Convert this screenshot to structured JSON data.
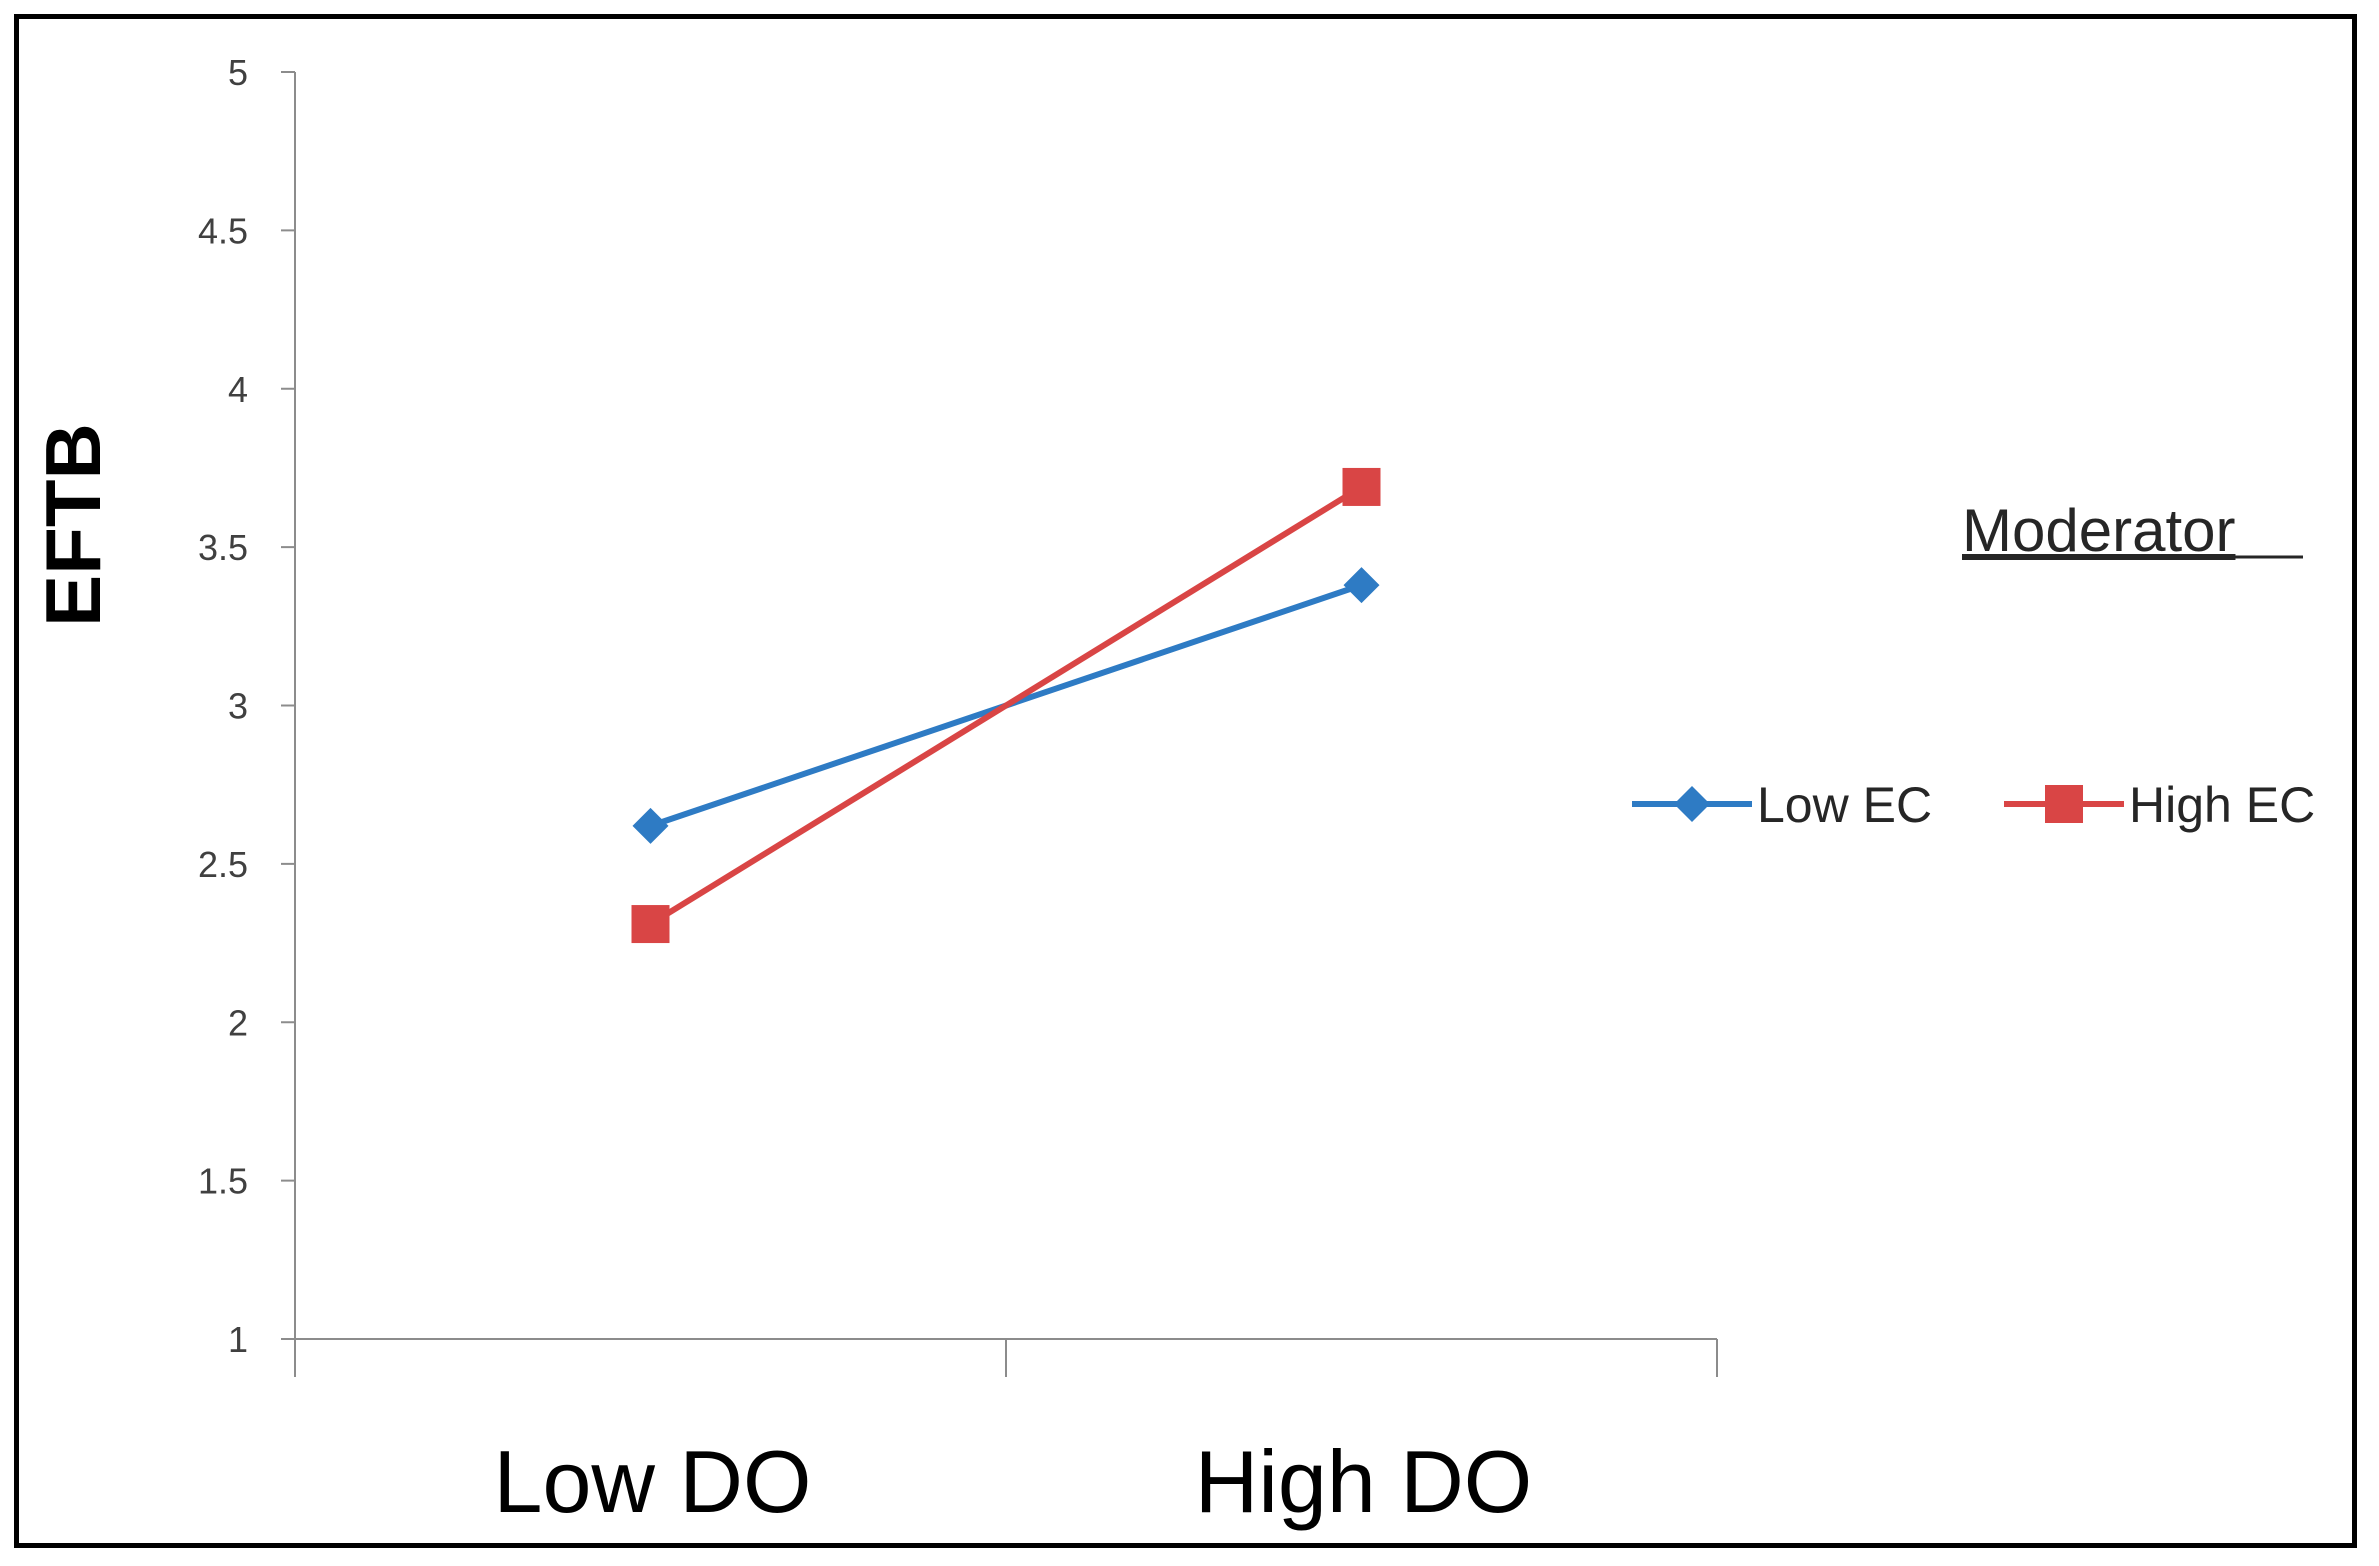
{
  "chart_data": {
    "type": "line",
    "title": "",
    "xlabel": "",
    "ylabel": "EFTB",
    "categories": [
      "Low DO",
      "High DO"
    ],
    "ylim": [
      1,
      5
    ],
    "yticks": [
      "1",
      "1.5",
      "2",
      "2.5",
      "3",
      "3.5",
      "4",
      "4.5",
      "5"
    ],
    "grid": false,
    "legend": {
      "title": "Moderator",
      "placement": "right"
    },
    "series": [
      {
        "name": "Low EC",
        "values": [
          2.62,
          3.38
        ],
        "color": "#2E7BC4",
        "marker": "diamond"
      },
      {
        "name": "High EC",
        "values": [
          2.31,
          3.69
        ],
        "color": "#D94545",
        "marker": "square"
      }
    ]
  }
}
